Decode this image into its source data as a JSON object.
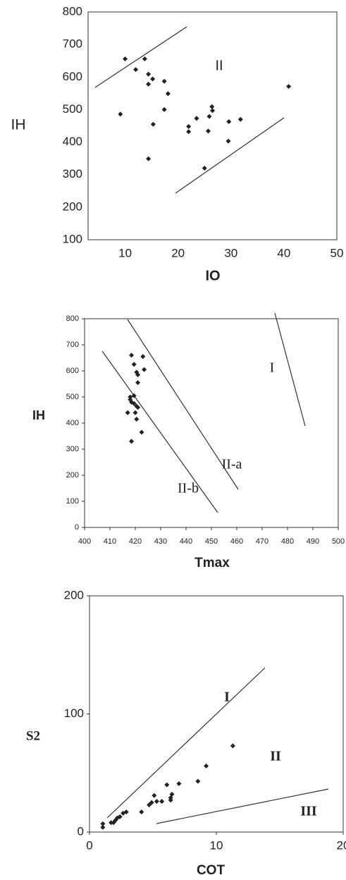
{
  "chart_data": [
    {
      "type": "scatter",
      "x_label": "IO",
      "y_label": "IH",
      "annotations": [
        "II"
      ],
      "xlim": [
        3,
        50
      ],
      "xticks": [
        10,
        20,
        30,
        40,
        50
      ],
      "ylim": [
        100,
        800
      ],
      "yticks": [
        100,
        200,
        300,
        400,
        500,
        600,
        700,
        800
      ],
      "color": "#222222",
      "series": [
        {
          "x": [
            10,
            12,
            13.7,
            14.4,
            14.4,
            15.2,
            9.1,
            17.4,
            18.1,
            17.4,
            15.3,
            14.4,
            22,
            22,
            23.5,
            26.4,
            26.5,
            25.9,
            25.7,
            29.6,
            31.8,
            29.5,
            25,
            40.9
          ],
          "values": [
            656,
            623,
            656,
            609,
            578,
            594,
            486,
            587,
            549,
            500,
            455,
            349,
            448,
            432,
            473,
            509,
            497,
            479,
            434,
            463,
            470,
            403,
            320,
            571
          ]
        }
      ]
    },
    {
      "type": "scatter",
      "x_label": "Tmax",
      "y_label": "IH",
      "annotations": [
        "I",
        "II-a",
        "II-b"
      ],
      "xlim": [
        400,
        500
      ],
      "xticks": [
        400,
        410,
        420,
        430,
        440,
        450,
        460,
        470,
        480,
        490,
        500
      ],
      "ylim": [
        0,
        800
      ],
      "yticks": [
        0,
        100,
        200,
        300,
        400,
        500,
        600,
        700,
        800
      ],
      "color": "#222222",
      "series": [
        {
          "x": [
            418.5,
            423,
            419.5,
            423.5,
            420.5,
            421,
            421,
            418,
            419.5,
            418.5,
            419.5,
            420.5,
            421,
            417,
            420,
            420.5,
            422.5,
            418.5,
            418
          ],
          "values": [
            660,
            655,
            625,
            605,
            595,
            585,
            555,
            500,
            505,
            480,
            475,
            465,
            460,
            440,
            440,
            415,
            365,
            330,
            490
          ]
        }
      ]
    },
    {
      "type": "scatter",
      "x_label": "COT",
      "y_label": "S2",
      "annotations": [
        "I",
        "II",
        "III"
      ],
      "xlim": [
        0,
        20
      ],
      "xticks": [
        0,
        10,
        20
      ],
      "ylim": [
        0,
        200
      ],
      "yticks": [
        0,
        100,
        200
      ],
      "color": "#222222",
      "series": [
        {
          "x": [
            1.05,
            1.05,
            1.7,
            1.9,
            2.05,
            2.2,
            2.4,
            2.65,
            2.9,
            4.1,
            4.7,
            4.9,
            5.1,
            5.3,
            5.7,
            6.1,
            6.4,
            6.4,
            6.5,
            7.05,
            8.55,
            9.2,
            11.3
          ],
          "values": [
            4,
            7,
            8,
            8,
            10,
            12,
            13,
            16,
            17,
            17,
            23,
            25,
            31,
            26,
            26,
            40,
            29,
            27,
            32,
            41,
            43,
            56,
            73
          ]
        }
      ]
    }
  ]
}
